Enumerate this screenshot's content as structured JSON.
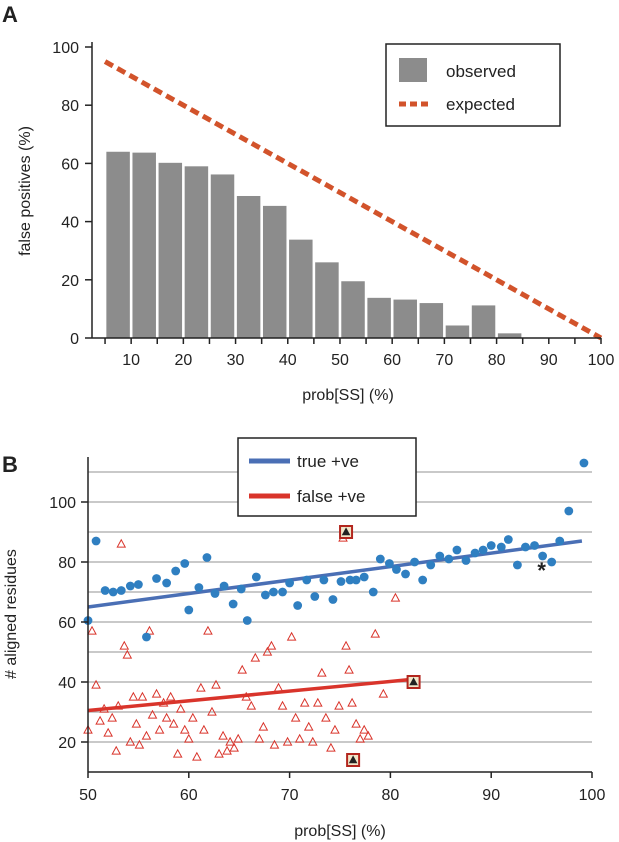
{
  "chart_data": [
    {
      "panel": "A",
      "type": "bar",
      "xlabel": "prob[SS] (%)",
      "ylabel": "false positives (%)",
      "xlim": [
        2.5,
        100
      ],
      "ylim": [
        0,
        100
      ],
      "yticks": [
        0,
        20,
        40,
        60,
        80,
        100
      ],
      "xticks": [
        10,
        20,
        30,
        40,
        50,
        60,
        70,
        80,
        90,
        100
      ],
      "legend_position": "top-right",
      "series": [
        {
          "name": "observed",
          "kind": "bar",
          "color": "#8c8c8c",
          "x": [
            7.5,
            12.5,
            17.5,
            22.5,
            27.5,
            32.5,
            37.5,
            42.5,
            47.5,
            52.5,
            57.5,
            62.5,
            67.5,
            72.5,
            77.5,
            82.5,
            87.5,
            92.5,
            97.5
          ],
          "values": [
            64,
            63.7,
            60.2,
            59,
            56.2,
            48.8,
            45.4,
            33.8,
            26,
            19.5,
            13.8,
            13.2,
            12,
            4.3,
            11.2,
            1.6,
            0,
            0,
            0
          ]
        },
        {
          "name": "expected",
          "kind": "line",
          "style": "dashed",
          "color": "#d2532b",
          "x": [
            5,
            100
          ],
          "values": [
            95,
            0
          ]
        }
      ],
      "legend": [
        "observed",
        "expected"
      ]
    },
    {
      "panel": "B",
      "type": "scatter",
      "xlabel": "prob[SS] (%)",
      "ylabel": "# aligned residues",
      "xlim": [
        50,
        100
      ],
      "ylim": [
        10,
        115
      ],
      "xticks": [
        50,
        60,
        70,
        80,
        90,
        100
      ],
      "yticks": [
        20,
        40,
        60,
        80,
        100
      ],
      "grid_y": [
        20,
        30,
        40,
        50,
        60,
        70,
        80,
        90,
        100,
        110
      ],
      "legend_position": "top-left",
      "legend": [
        "true +ve",
        "false +ve"
      ],
      "series": [
        {
          "name": "true +ve",
          "marker": "circle",
          "color": "#2f7fc1",
          "fit": {
            "x": [
              50,
              99
            ],
            "y": [
              65,
              87
            ],
            "color": "#4a6fb5"
          },
          "points": [
            [
              50,
              60.5
            ],
            [
              50.8,
              87
            ],
            [
              51.7,
              70.5
            ],
            [
              52.5,
              70
            ],
            [
              53.3,
              70.5
            ],
            [
              54.2,
              72
            ],
            [
              55,
              72.5
            ],
            [
              55.8,
              55
            ],
            [
              56.8,
              74.5
            ],
            [
              57.8,
              73
            ],
            [
              58.7,
              77
            ],
            [
              59.6,
              79.5
            ],
            [
              60,
              64
            ],
            [
              61,
              71.5
            ],
            [
              61.8,
              81.5
            ],
            [
              62.6,
              69.5
            ],
            [
              63.5,
              72
            ],
            [
              64.4,
              66
            ],
            [
              65.2,
              71
            ],
            [
              65.8,
              60.5
            ],
            [
              66.7,
              75
            ],
            [
              67.6,
              69
            ],
            [
              68.4,
              70
            ],
            [
              69.3,
              70
            ],
            [
              70,
              73
            ],
            [
              70.8,
              65.5
            ],
            [
              71.7,
              74
            ],
            [
              72.5,
              68.5
            ],
            [
              73.4,
              74
            ],
            [
              74.3,
              67.5
            ],
            [
              75.1,
              73.5
            ],
            [
              76,
              74
            ],
            [
              76.6,
              74
            ],
            [
              77.4,
              75
            ],
            [
              78.3,
              70
            ],
            [
              79,
              81
            ],
            [
              79.9,
              79.5
            ],
            [
              80.6,
              77.5
            ],
            [
              81.5,
              76
            ],
            [
              82.4,
              80
            ],
            [
              83.2,
              74
            ],
            [
              84,
              79
            ],
            [
              84.9,
              82
            ],
            [
              85.8,
              81
            ],
            [
              86.6,
              84
            ],
            [
              87.5,
              80.5
            ],
            [
              88.4,
              83
            ],
            [
              89.2,
              84
            ],
            [
              90,
              85.5
            ],
            [
              91,
              85
            ],
            [
              91.7,
              87.5
            ],
            [
              92.6,
              79
            ],
            [
              93.4,
              85
            ],
            [
              94.3,
              85.5
            ],
            [
              95.1,
              82
            ],
            [
              96,
              80
            ],
            [
              96.8,
              87
            ],
            [
              97.7,
              97
            ],
            [
              99.2,
              113
            ]
          ],
          "annotations": [
            {
              "x": 95,
              "y": 79,
              "text": "*"
            }
          ]
        },
        {
          "name": "false +ve",
          "marker": "triangle-open",
          "color": "#d9342b",
          "fit": {
            "x": [
              50,
              82.5
            ],
            "y": [
              30.5,
              41
            ],
            "color": "#d9342b"
          },
          "highlighted": [
            [
              75.6,
              90
            ],
            [
              82.3,
              40
            ],
            [
              76.3,
              14
            ]
          ],
          "points": [
            [
              50,
              24
            ],
            [
              50.4,
              57
            ],
            [
              50.8,
              39
            ],
            [
              51.2,
              27
            ],
            [
              51.6,
              31
            ],
            [
              52,
              23
            ],
            [
              52.4,
              28
            ],
            [
              52.8,
              17
            ],
            [
              53,
              32
            ],
            [
              53.3,
              86
            ],
            [
              53.6,
              52
            ],
            [
              53.9,
              49
            ],
            [
              54.2,
              20
            ],
            [
              54.5,
              35
            ],
            [
              54.8,
              26
            ],
            [
              55.1,
              19
            ],
            [
              55.4,
              35
            ],
            [
              55.8,
              22
            ],
            [
              56.1,
              57
            ],
            [
              56.4,
              29
            ],
            [
              56.8,
              36
            ],
            [
              57.1,
              24
            ],
            [
              57.5,
              33
            ],
            [
              57.8,
              28
            ],
            [
              58.2,
              35
            ],
            [
              58.5,
              26
            ],
            [
              58.9,
              16
            ],
            [
              59.2,
              31
            ],
            [
              59.6,
              24
            ],
            [
              60,
              21
            ],
            [
              60.4,
              28
            ],
            [
              60.8,
              15
            ],
            [
              61.2,
              38
            ],
            [
              61.5,
              24
            ],
            [
              61.9,
              57
            ],
            [
              62.3,
              30
            ],
            [
              62.7,
              39
            ],
            [
              63,
              16
            ],
            [
              63.4,
              22
            ],
            [
              63.8,
              17
            ],
            [
              64.1,
              20
            ],
            [
              64.5,
              18
            ],
            [
              64.9,
              21
            ],
            [
              65.3,
              44
            ],
            [
              65.7,
              35
            ],
            [
              66.2,
              32
            ],
            [
              66.6,
              48
            ],
            [
              67,
              21
            ],
            [
              67.4,
              25
            ],
            [
              67.8,
              50
            ],
            [
              68.2,
              52
            ],
            [
              68.5,
              19
            ],
            [
              68.9,
              38
            ],
            [
              69.3,
              32
            ],
            [
              69.8,
              20
            ],
            [
              70.2,
              55
            ],
            [
              70.6,
              28
            ],
            [
              71,
              21
            ],
            [
              71.5,
              33
            ],
            [
              71.9,
              25
            ],
            [
              72.3,
              20
            ],
            [
              72.8,
              33
            ],
            [
              73.2,
              43
            ],
            [
              73.6,
              28
            ],
            [
              74.1,
              18
            ],
            [
              74.5,
              24
            ],
            [
              74.9,
              32
            ],
            [
              75.3,
              88
            ],
            [
              75.6,
              52
            ],
            [
              75.9,
              44
            ],
            [
              76.2,
              33
            ],
            [
              76.6,
              26
            ],
            [
              77,
              21
            ],
            [
              77.4,
              24
            ],
            [
              77.8,
              22
            ],
            [
              78.5,
              56
            ],
            [
              79.3,
              36
            ],
            [
              80.5,
              68
            ],
            [
              82.3,
              40
            ]
          ]
        }
      ]
    }
  ]
}
